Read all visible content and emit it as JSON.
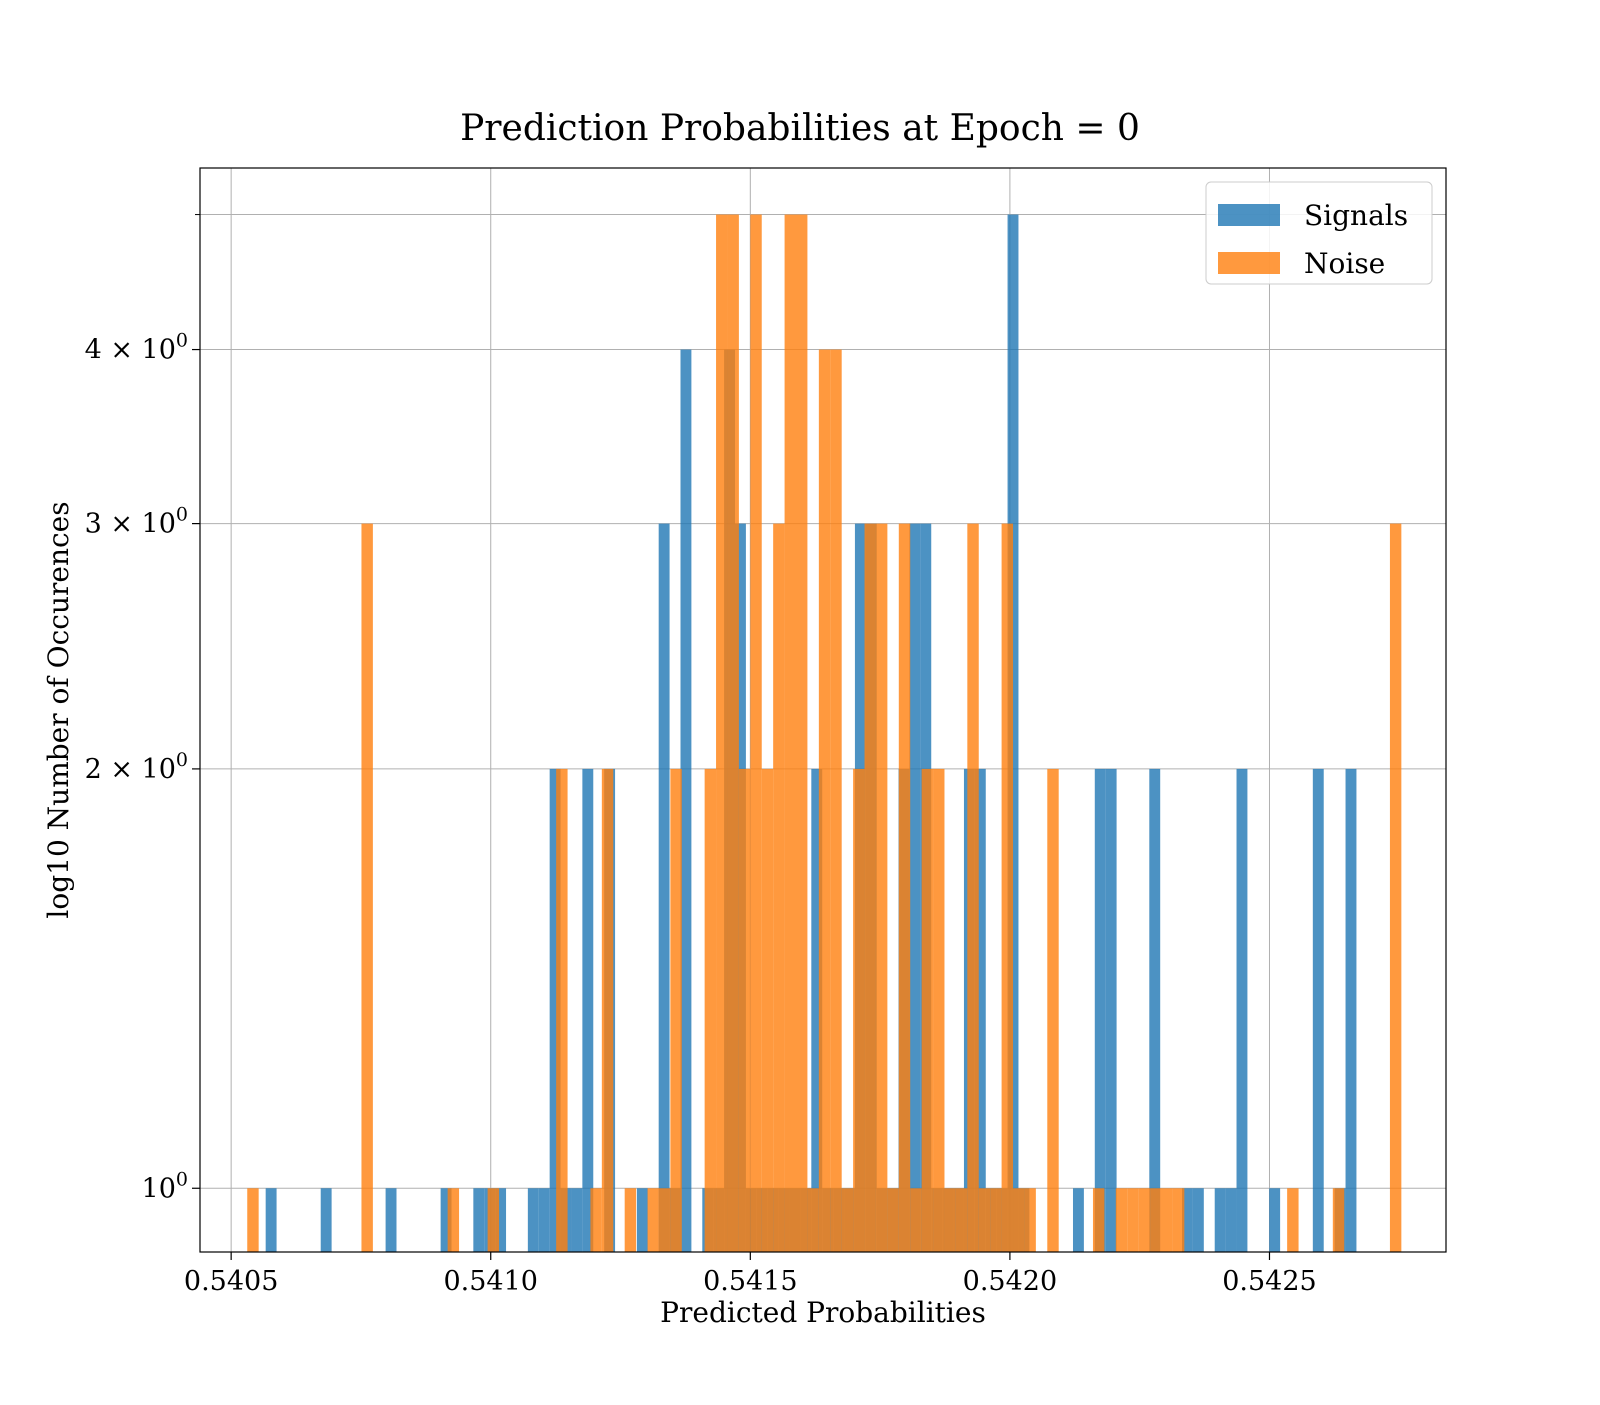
{
  "chart_data": {
    "type": "bar",
    "title": "Prediction Probabilities at Epoch = 0",
    "xlabel": "Predicted Probabilities",
    "ylabel": "log10 Number of Occurences",
    "y_scale": "log",
    "xlim": [
      0.54044,
      0.54284
    ],
    "ylim": [
      0.9,
      5.4
    ],
    "x_ticks": [
      {
        "value": 0.5405,
        "label": "0.5405"
      },
      {
        "value": 0.541,
        "label": "0.5410"
      },
      {
        "value": 0.5415,
        "label": "0.5415"
      },
      {
        "value": 0.542,
        "label": "0.5420"
      },
      {
        "value": 0.5425,
        "label": "0.5425"
      }
    ],
    "y_ticks": [
      {
        "value": 1,
        "base": "10",
        "exp": "0"
      },
      {
        "value": 2,
        "base": "2 × 10",
        "exp": "0"
      },
      {
        "value": 3,
        "base": "3 × 10",
        "exp": "0"
      },
      {
        "value": 4,
        "base": "4 × 10",
        "exp": "0"
      }
    ],
    "grid": true,
    "legend_position": "top-right",
    "bar_opacity": 0.8,
    "series": [
      {
        "name": "Signals",
        "color": "#1f77b4",
        "bin_width": 2.1e-05,
        "bars": [
          {
            "x": 0.540577,
            "count": 1
          },
          {
            "x": 0.540683,
            "count": 1
          },
          {
            "x": 0.540808,
            "count": 1
          },
          {
            "x": 0.540914,
            "count": 1
          },
          {
            "x": 0.540977,
            "count": 1
          },
          {
            "x": 0.540998,
            "count": 1
          },
          {
            "x": 0.541019,
            "count": 1
          },
          {
            "x": 0.541082,
            "count": 1
          },
          {
            "x": 0.541103,
            "count": 1
          },
          {
            "x": 0.541124,
            "count": 2
          },
          {
            "x": 0.541145,
            "count": 1
          },
          {
            "x": 0.541166,
            "count": 1
          },
          {
            "x": 0.541187,
            "count": 2
          },
          {
            "x": 0.541229,
            "count": 2
          },
          {
            "x": 0.541292,
            "count": 1
          },
          {
            "x": 0.541334,
            "count": 3
          },
          {
            "x": 0.541355,
            "count": 1
          },
          {
            "x": 0.541376,
            "count": 4
          },
          {
            "x": 0.541418,
            "count": 1
          },
          {
            "x": 0.541439,
            "count": 1
          },
          {
            "x": 0.54146,
            "count": 4
          },
          {
            "x": 0.541481,
            "count": 3
          },
          {
            "x": 0.541502,
            "count": 1
          },
          {
            "x": 0.541523,
            "count": 1
          },
          {
            "x": 0.541544,
            "count": 1
          },
          {
            "x": 0.541565,
            "count": 1
          },
          {
            "x": 0.541586,
            "count": 1
          },
          {
            "x": 0.541607,
            "count": 1
          },
          {
            "x": 0.541628,
            "count": 2
          },
          {
            "x": 0.541649,
            "count": 1
          },
          {
            "x": 0.54167,
            "count": 1
          },
          {
            "x": 0.541691,
            "count": 1
          },
          {
            "x": 0.541712,
            "count": 3
          },
          {
            "x": 0.541733,
            "count": 3
          },
          {
            "x": 0.541754,
            "count": 1
          },
          {
            "x": 0.541775,
            "count": 1
          },
          {
            "x": 0.541796,
            "count": 2
          },
          {
            "x": 0.541817,
            "count": 3
          },
          {
            "x": 0.541838,
            "count": 3
          },
          {
            "x": 0.541859,
            "count": 1
          },
          {
            "x": 0.54188,
            "count": 1
          },
          {
            "x": 0.541901,
            "count": 1
          },
          {
            "x": 0.541922,
            "count": 2
          },
          {
            "x": 0.541943,
            "count": 2
          },
          {
            "x": 0.541964,
            "count": 1
          },
          {
            "x": 0.541985,
            "count": 1
          },
          {
            "x": 0.542006,
            "count": 5
          },
          {
            "x": 0.542027,
            "count": 1
          },
          {
            "x": 0.542132,
            "count": 1
          },
          {
            "x": 0.542174,
            "count": 2
          },
          {
            "x": 0.542195,
            "count": 2
          },
          {
            "x": 0.542279,
            "count": 2
          },
          {
            "x": 0.542342,
            "count": 1
          },
          {
            "x": 0.542363,
            "count": 1
          },
          {
            "x": 0.542405,
            "count": 1
          },
          {
            "x": 0.542426,
            "count": 1
          },
          {
            "x": 0.542447,
            "count": 2
          },
          {
            "x": 0.54251,
            "count": 1
          },
          {
            "x": 0.542594,
            "count": 2
          },
          {
            "x": 0.542636,
            "count": 1
          },
          {
            "x": 0.542657,
            "count": 2
          }
        ]
      },
      {
        "name": "Noise",
        "color": "#ff7f0e",
        "bin_width": 2.2e-05,
        "bars": [
          {
            "x": 0.540542,
            "count": 1
          },
          {
            "x": 0.540762,
            "count": 3
          },
          {
            "x": 0.540928,
            "count": 1
          },
          {
            "x": 0.541005,
            "count": 1
          },
          {
            "x": 0.541137,
            "count": 2
          },
          {
            "x": 0.541203,
            "count": 1
          },
          {
            "x": 0.541225,
            "count": 2
          },
          {
            "x": 0.541269,
            "count": 1
          },
          {
            "x": 0.541313,
            "count": 1
          },
          {
            "x": 0.541335,
            "count": 1
          },
          {
            "x": 0.541357,
            "count": 2
          },
          {
            "x": 0.541423,
            "count": 2
          },
          {
            "x": 0.541445,
            "count": 5
          },
          {
            "x": 0.541467,
            "count": 5
          },
          {
            "x": 0.541489,
            "count": 2
          },
          {
            "x": 0.541511,
            "count": 5
          },
          {
            "x": 0.541533,
            "count": 2
          },
          {
            "x": 0.541555,
            "count": 3
          },
          {
            "x": 0.541577,
            "count": 5
          },
          {
            "x": 0.541599,
            "count": 5
          },
          {
            "x": 0.541621,
            "count": 1
          },
          {
            "x": 0.541643,
            "count": 4
          },
          {
            "x": 0.541665,
            "count": 4
          },
          {
            "x": 0.541687,
            "count": 1
          },
          {
            "x": 0.541709,
            "count": 2
          },
          {
            "x": 0.541731,
            "count": 3
          },
          {
            "x": 0.541753,
            "count": 3
          },
          {
            "x": 0.541775,
            "count": 1
          },
          {
            "x": 0.541797,
            "count": 3
          },
          {
            "x": 0.541819,
            "count": 1
          },
          {
            "x": 0.541841,
            "count": 2
          },
          {
            "x": 0.541863,
            "count": 2
          },
          {
            "x": 0.541885,
            "count": 1
          },
          {
            "x": 0.541907,
            "count": 1
          },
          {
            "x": 0.541929,
            "count": 3
          },
          {
            "x": 0.541951,
            "count": 1
          },
          {
            "x": 0.541973,
            "count": 1
          },
          {
            "x": 0.541995,
            "count": 3
          },
          {
            "x": 0.542017,
            "count": 1
          },
          {
            "x": 0.542039,
            "count": 1
          },
          {
            "x": 0.542083,
            "count": 2
          },
          {
            "x": 0.542171,
            "count": 1
          },
          {
            "x": 0.542215,
            "count": 1
          },
          {
            "x": 0.542237,
            "count": 1
          },
          {
            "x": 0.542259,
            "count": 1
          },
          {
            "x": 0.542281,
            "count": 1
          },
          {
            "x": 0.542303,
            "count": 1
          },
          {
            "x": 0.542325,
            "count": 1
          },
          {
            "x": 0.542545,
            "count": 1
          },
          {
            "x": 0.542633,
            "count": 1
          },
          {
            "x": 0.542743,
            "count": 3
          }
        ]
      }
    ]
  }
}
